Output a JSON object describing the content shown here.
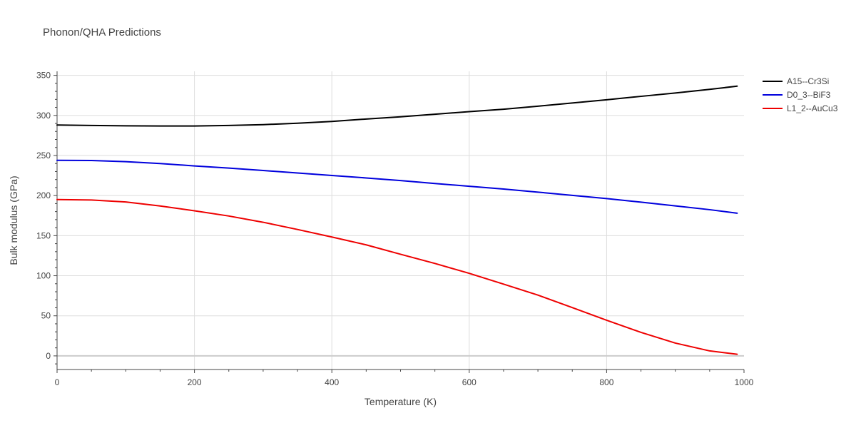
{
  "chart_data": {
    "type": "line",
    "title": "Phonon/QHA Predictions",
    "xlabel": "Temperature (K)",
    "ylabel": "Bulk modulus (GPa)",
    "xlim": [
      0,
      1000
    ],
    "ylim": [
      -17,
      355
    ],
    "xticks": [
      0,
      200,
      400,
      600,
      800,
      1000
    ],
    "yticks": [
      0,
      50,
      100,
      150,
      200,
      250,
      300,
      350
    ],
    "grid": true,
    "legend_position": "top-right",
    "series": [
      {
        "name": "A15--Cr3Si",
        "color": "#000000",
        "x": [
          0,
          50,
          100,
          150,
          200,
          250,
          300,
          350,
          400,
          450,
          500,
          550,
          600,
          650,
          700,
          750,
          800,
          850,
          900,
          950,
          990
        ],
        "y": [
          288,
          287.5,
          287,
          286.8,
          286.8,
          287.5,
          288.5,
          290.3,
          292.5,
          295.5,
          298.3,
          301.5,
          304.7,
          307.7,
          311.5,
          315.5,
          319.5,
          323.8,
          328,
          332.5,
          336.5
        ]
      },
      {
        "name": "D0_3--BiF3",
        "color": "#0000dd",
        "x": [
          0,
          50,
          100,
          150,
          200,
          250,
          300,
          350,
          400,
          450,
          500,
          550,
          600,
          650,
          700,
          750,
          800,
          850,
          900,
          950,
          990
        ],
        "y": [
          244,
          243.7,
          242.3,
          240,
          237,
          234.3,
          231.3,
          228.2,
          225.1,
          222,
          218.7,
          215.1,
          211.6,
          208.2,
          204.3,
          200.3,
          196.3,
          191.8,
          187.1,
          182.4,
          178
        ]
      },
      {
        "name": "L1_2--AuCu3",
        "color": "#ee0000",
        "x": [
          0,
          50,
          100,
          150,
          200,
          250,
          300,
          350,
          400,
          450,
          500,
          550,
          600,
          650,
          700,
          750,
          800,
          850,
          900,
          950,
          990
        ],
        "y": [
          195,
          194.5,
          192,
          187,
          181,
          174.5,
          166.7,
          157.7,
          148.3,
          138.5,
          126.8,
          115.3,
          103,
          89.5,
          75.8,
          60.3,
          44.5,
          29.3,
          16,
          6.2,
          2
        ]
      }
    ]
  }
}
